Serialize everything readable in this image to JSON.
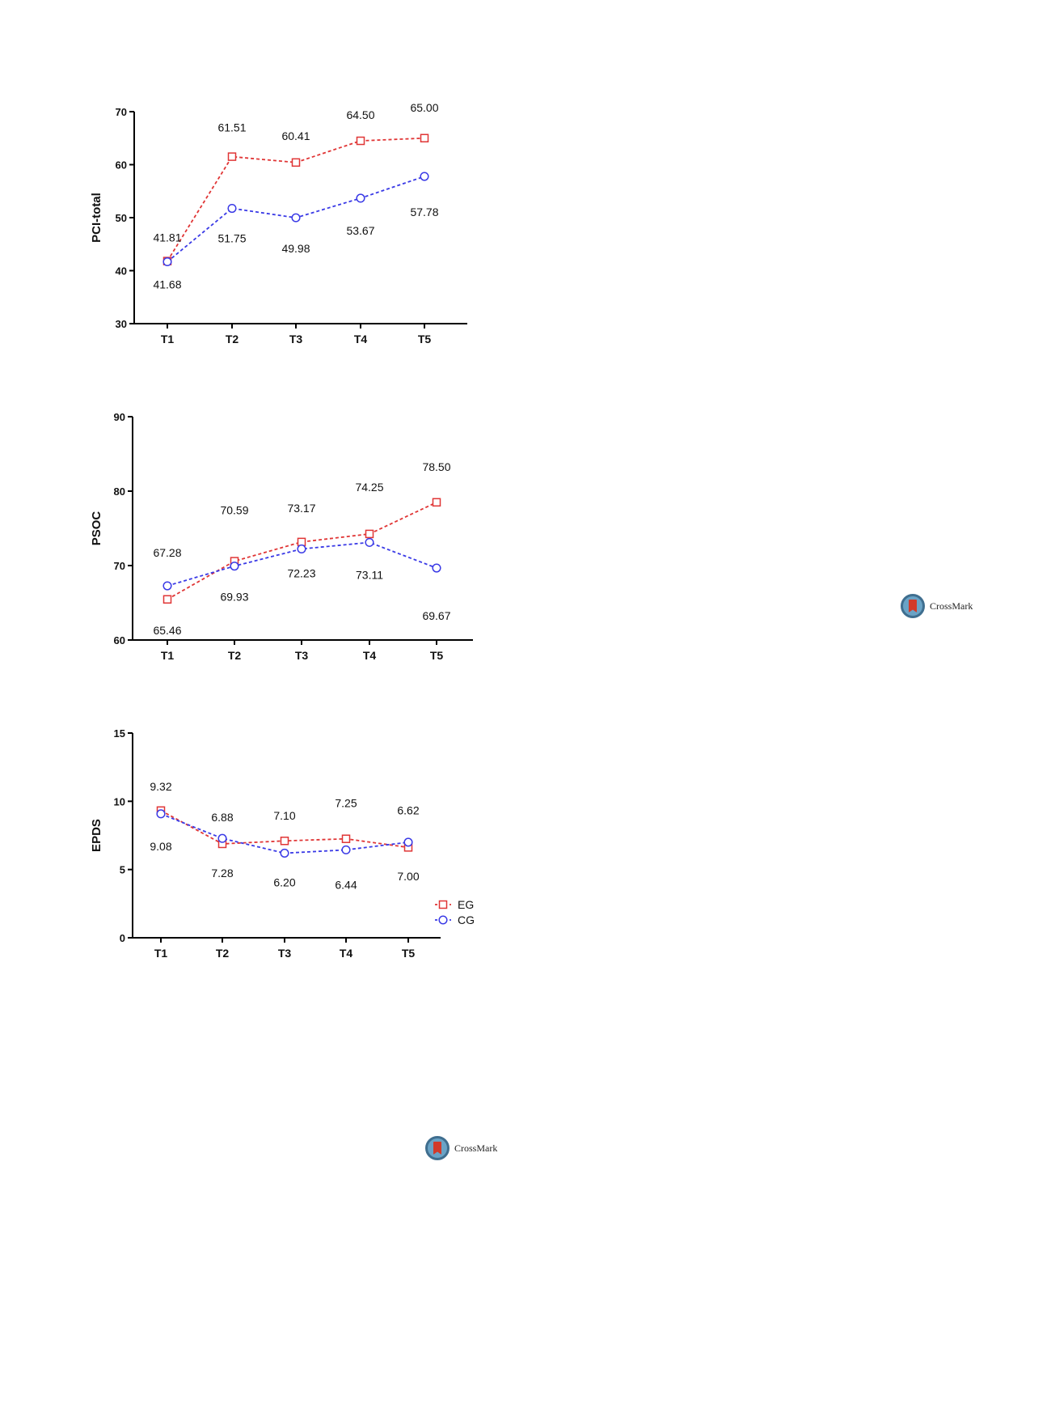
{
  "colors": {
    "eg": "#e03535",
    "cg": "#3a3ae6",
    "axis": "#000000"
  },
  "crossmark": {
    "label": "CrossMark"
  },
  "chart_data": [
    {
      "type": "line",
      "ylabel": "PCI-total",
      "ylim": [
        30,
        70
      ],
      "yticks": [
        30,
        40,
        50,
        60,
        70
      ],
      "categories": [
        "T1",
        "T2",
        "T3",
        "T4",
        "T5"
      ],
      "series": [
        {
          "name": "EG",
          "values": [
            41.81,
            61.51,
            60.41,
            64.5,
            65.0
          ],
          "labels": [
            "41.81",
            "61.51",
            "60.41",
            "64.50",
            "65.00"
          ]
        },
        {
          "name": "CG",
          "values": [
            41.68,
            51.75,
            49.98,
            53.67,
            57.78
          ],
          "labels": [
            "41.68",
            "51.75",
            "49.98",
            "53.67",
            "57.78"
          ]
        }
      ]
    },
    {
      "type": "line",
      "ylabel": "PSOC",
      "ylim": [
        60,
        90
      ],
      "yticks": [
        60,
        70,
        80,
        90
      ],
      "categories": [
        "T1",
        "T2",
        "T3",
        "T4",
        "T5"
      ],
      "series": [
        {
          "name": "EG",
          "values": [
            65.46,
            70.59,
            73.17,
            74.25,
            78.5
          ],
          "labels": [
            "65.46",
            "70.59",
            "73.17",
            "74.25",
            "78.50"
          ]
        },
        {
          "name": "CG",
          "values": [
            67.28,
            69.93,
            72.23,
            73.11,
            69.67
          ],
          "labels": [
            "67.28",
            "69.93",
            "72.23",
            "73.11",
            "69.67"
          ]
        }
      ]
    },
    {
      "type": "line",
      "ylabel": "EPDS",
      "ylim": [
        0,
        15
      ],
      "yticks": [
        0,
        5,
        10,
        15
      ],
      "categories": [
        "T1",
        "T2",
        "T3",
        "T4",
        "T5"
      ],
      "legend": [
        "EG",
        "CG"
      ],
      "series": [
        {
          "name": "EG",
          "values": [
            9.32,
            6.88,
            7.1,
            7.25,
            6.62
          ],
          "labels": [
            "9.32",
            "6.88",
            "7.10",
            "7.25",
            "6.62"
          ]
        },
        {
          "name": "CG",
          "values": [
            9.08,
            7.28,
            6.2,
            6.44,
            7.0
          ],
          "labels": [
            "9.08",
            "7.28",
            "6.20",
            "6.44",
            "7.00"
          ]
        }
      ]
    }
  ]
}
